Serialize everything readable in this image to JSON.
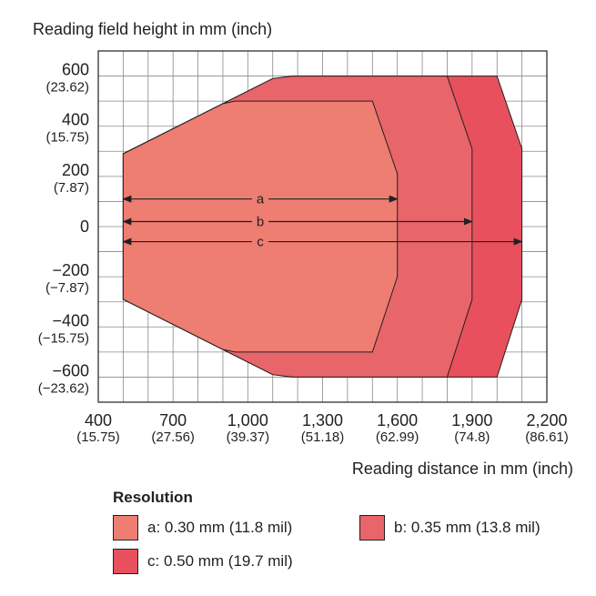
{
  "chart_data": {
    "type": "area",
    "title": "Reading field height in mm (inch)",
    "xlabel": "Reading distance in mm (inch)",
    "ylabel": "Reading field height in mm (inch)",
    "xlim": [
      400,
      2200
    ],
    "ylim": [
      -700,
      700
    ],
    "x_ticks": [
      {
        "value": 400,
        "label": "400",
        "sub": "(15.75)"
      },
      {
        "value": 700,
        "label": "700",
        "sub": "(27.56)"
      },
      {
        "value": 1000,
        "label": "1,000",
        "sub": "(39.37)"
      },
      {
        "value": 1300,
        "label": "1,300",
        "sub": "(51.18)"
      },
      {
        "value": 1600,
        "label": "1,600",
        "sub": "(62.99)"
      },
      {
        "value": 1900,
        "label": "1,900",
        "sub": "(74.8)"
      },
      {
        "value": 2200,
        "label": "2,200",
        "sub": "(86.61)"
      }
    ],
    "y_ticks": [
      {
        "value": 600,
        "label": "600",
        "sub": "(23.62)"
      },
      {
        "value": 400,
        "label": "400",
        "sub": "(15.75)"
      },
      {
        "value": 200,
        "label": "200",
        "sub": "(7.87)"
      },
      {
        "value": 0,
        "label": "0",
        "sub": ""
      },
      {
        "value": -200,
        "label": "−200",
        "sub": "(−7.87)"
      },
      {
        "value": -400,
        "label": "−400",
        "sub": "(−15.75)"
      },
      {
        "value": -600,
        "label": "−600",
        "sub": "(−23.62)"
      }
    ],
    "grid": true,
    "series": [
      {
        "name": "c",
        "color": "#e8505d",
        "points": [
          [
            500,
            290
          ],
          [
            900,
            490
          ],
          [
            1100,
            590
          ],
          [
            1180,
            600
          ],
          [
            2000,
            600
          ],
          [
            2100,
            310
          ],
          [
            2100,
            -290
          ],
          [
            2000,
            -600
          ],
          [
            1180,
            -600
          ],
          [
            1100,
            -590
          ],
          [
            900,
            -490
          ],
          [
            500,
            -290
          ]
        ],
        "arrow_y": -60,
        "arrow_x": [
          500,
          2100
        ]
      },
      {
        "name": "b",
        "color": "#e8656a",
        "points": [
          [
            500,
            290
          ],
          [
            900,
            490
          ],
          [
            1100,
            590
          ],
          [
            1180,
            600
          ],
          [
            1800,
            600
          ],
          [
            1900,
            310
          ],
          [
            1900,
            -290
          ],
          [
            1800,
            -600
          ],
          [
            1180,
            -600
          ],
          [
            1100,
            -590
          ],
          [
            900,
            -490
          ],
          [
            500,
            -290
          ]
        ],
        "arrow_y": 20,
        "arrow_x": [
          500,
          1900
        ]
      },
      {
        "name": "a",
        "color": "#ee7d72",
        "points": [
          [
            500,
            290
          ],
          [
            900,
            490
          ],
          [
            950,
            500
          ],
          [
            1500,
            500
          ],
          [
            1600,
            210
          ],
          [
            1600,
            -200
          ],
          [
            1500,
            -500
          ],
          [
            950,
            -500
          ],
          [
            900,
            -490
          ],
          [
            500,
            -290
          ]
        ],
        "arrow_y": 110,
        "arrow_x": [
          500,
          1600
        ]
      }
    ]
  },
  "legend": {
    "title": "Resolution",
    "items": [
      {
        "label": "a: 0.30 mm (11.8 mil)",
        "color": "#ee7d72"
      },
      {
        "label": "b: 0.35 mm (13.8 mil)",
        "color": "#e8656a"
      },
      {
        "label": "c: 0.50 mm (19.7 mil)",
        "color": "#e8505d"
      }
    ]
  }
}
